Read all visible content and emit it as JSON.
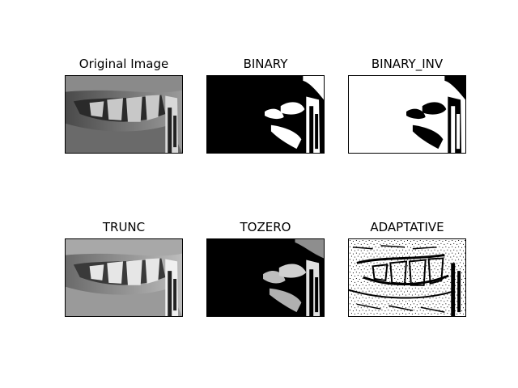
{
  "figure": {
    "panels": [
      {
        "id": "original",
        "title": "Original Image"
      },
      {
        "id": "binary",
        "title": "BINARY"
      },
      {
        "id": "binary_inv",
        "title": "BINARY_INV"
      },
      {
        "id": "trunc",
        "title": "TRUNC"
      },
      {
        "id": "tozero",
        "title": "TOZERO"
      },
      {
        "id": "adaptative",
        "title": "ADAPTATIVE"
      }
    ]
  }
}
